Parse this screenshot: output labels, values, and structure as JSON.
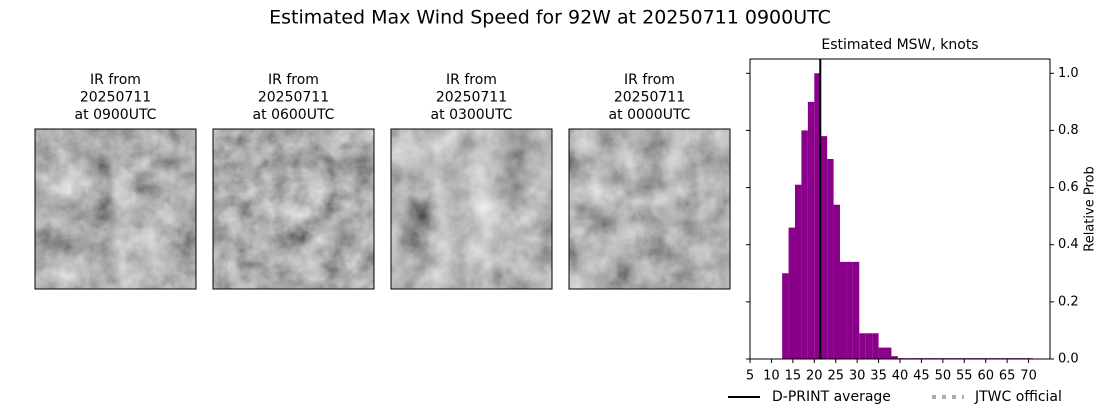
{
  "title": "Estimated Max Wind Speed for 92W at 20250711 0900UTC",
  "panels": [
    {
      "lines": [
        "IR from",
        "20250711",
        "at 0900UTC"
      ]
    },
    {
      "lines": [
        "IR from",
        "20250711",
        "at 0600UTC"
      ]
    },
    {
      "lines": [
        "IR from",
        "20250711",
        "at 0300UTC"
      ]
    },
    {
      "lines": [
        "IR from",
        "20250711",
        "at 0000UTC"
      ]
    }
  ],
  "chart_data": {
    "type": "histogram",
    "title": "Estimated MSW, knots",
    "ylabel": "Relative Prob",
    "bins": [
      12.5,
      14,
      15.5,
      17,
      18.5,
      20,
      21.5,
      23,
      24.5,
      26,
      27.5,
      29,
      30.5,
      32,
      33.5,
      35,
      36.5,
      38,
      39.5,
      41,
      42.5,
      44,
      45.5,
      47,
      48.5,
      50,
      51.5,
      53,
      54.5,
      56,
      57.5,
      59,
      60.5,
      62,
      63.5,
      65,
      66.5,
      68,
      69.5,
      71
    ],
    "values": [
      0.3,
      0.46,
      0.61,
      0.8,
      0.9,
      1.0,
      0.78,
      0.7,
      0.54,
      0.34,
      0.34,
      0.34,
      0.09,
      0.09,
      0.09,
      0.04,
      0.04,
      0.01,
      0.003,
      0.003,
      0.003,
      0.003,
      0.003,
      0.003,
      0.003,
      0.003,
      0.003,
      0.003,
      0.003,
      0.003,
      0.003,
      0.003,
      0.003,
      0.003,
      0.003,
      0.003,
      0.003,
      0.003,
      0.003
    ],
    "color": "#8b008b",
    "xlim": [
      5,
      75
    ],
    "ylim": [
      0,
      1.05
    ],
    "xticks": [
      5,
      10,
      15,
      20,
      25,
      30,
      35,
      40,
      45,
      50,
      55,
      60,
      65,
      70
    ],
    "yticks": [
      {
        "value": 0,
        "label": "0.0"
      },
      {
        "value": 0.2,
        "label": "0.2"
      },
      {
        "value": 0.4,
        "label": "0.4"
      },
      {
        "value": 0.6,
        "label": "0.6"
      },
      {
        "value": 0.8,
        "label": "0.8"
      },
      {
        "value": 1.0,
        "label": "1.0"
      }
    ],
    "average_line": {
      "name": "D-PRINT average",
      "value": 21.4,
      "color": "#000000"
    },
    "jtwc_official": {
      "name": "JTWC official",
      "color": "#aaaaaa"
    }
  }
}
